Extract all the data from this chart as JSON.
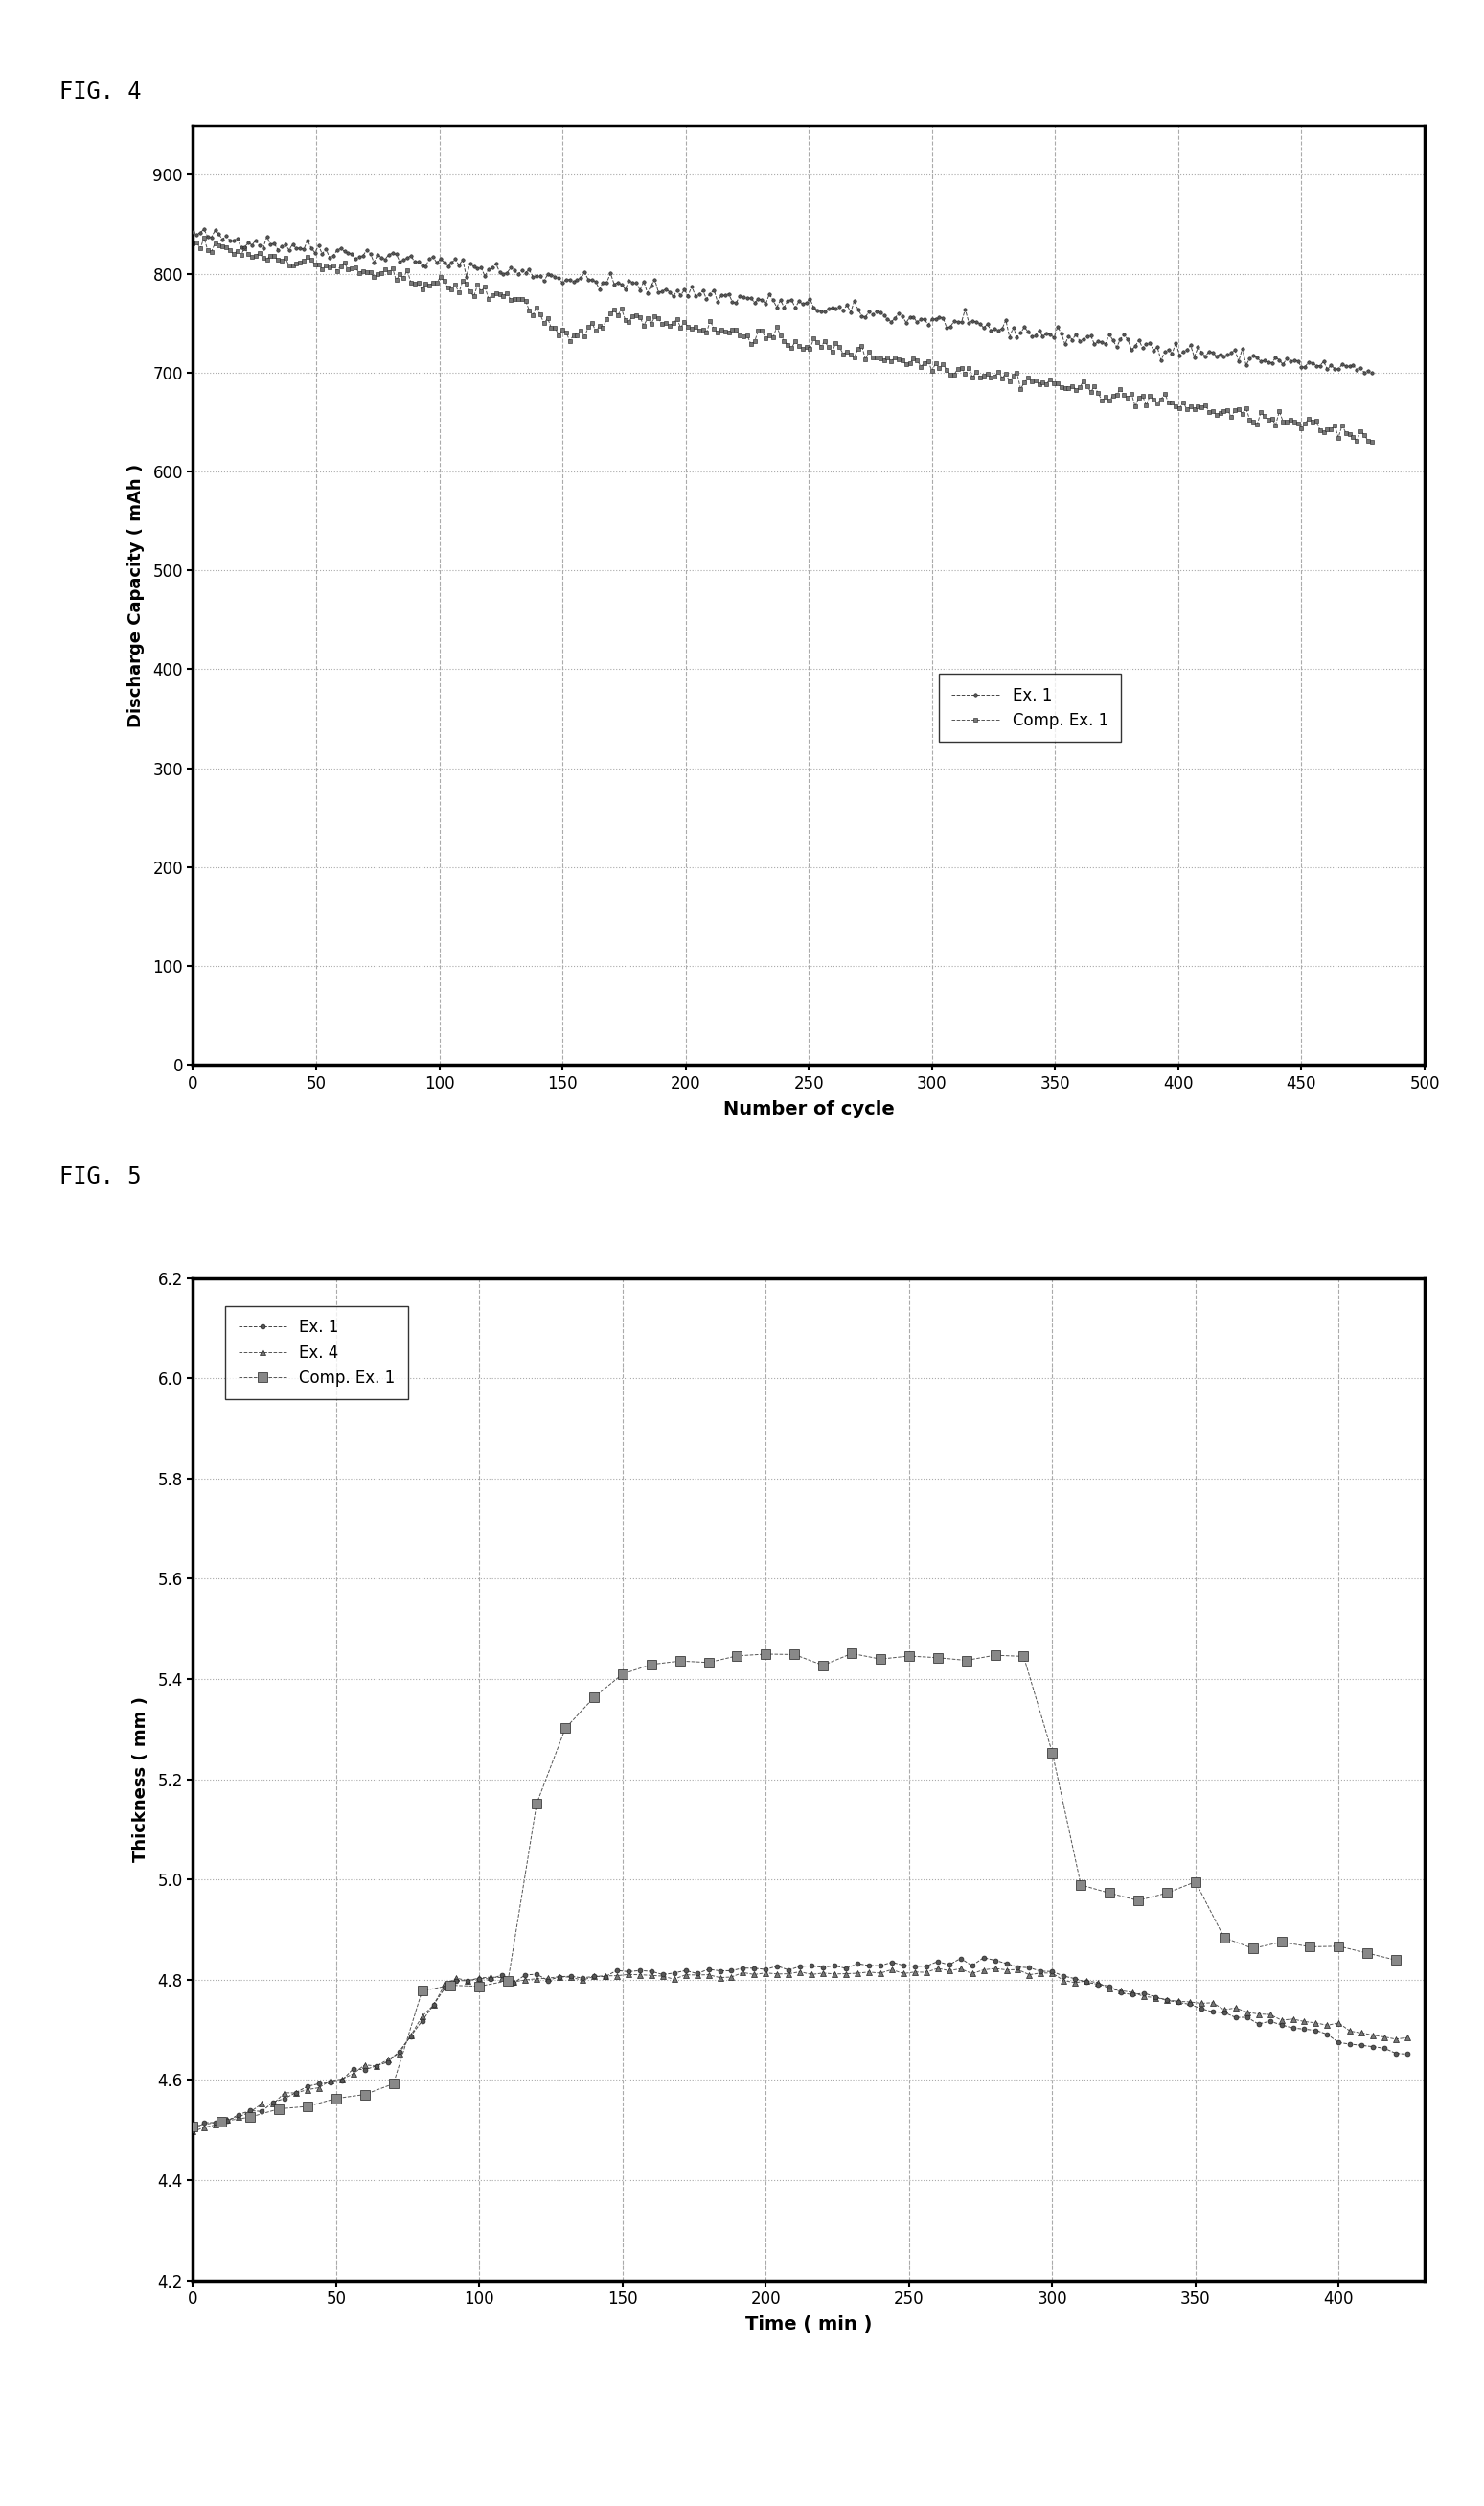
{
  "fig4_title": "FIG. 4",
  "fig5_title": "FIG. 5",
  "fig4_xlabel": "Number of cycle",
  "fig4_ylabel": "Discharge Capacity ( mAh )",
  "fig4_xlim": [
    0,
    500
  ],
  "fig4_ylim": [
    0,
    950
  ],
  "fig4_xticks": [
    0,
    50,
    100,
    150,
    200,
    250,
    300,
    350,
    400,
    450,
    500
  ],
  "fig4_yticks": [
    0,
    100,
    200,
    300,
    400,
    500,
    600,
    700,
    800,
    900
  ],
  "fig5_xlabel": "Time ( min )",
  "fig5_ylabel": "Thickness ( mm )",
  "fig5_xlim": [
    0,
    430
  ],
  "fig5_ylim": [
    4.2,
    6.2
  ],
  "fig5_xticks": [
    0,
    50,
    100,
    150,
    200,
    250,
    300,
    350,
    400
  ],
  "fig5_yticks": [
    4.2,
    4.4,
    4.6,
    4.8,
    5.0,
    5.2,
    5.4,
    5.6,
    5.8,
    6.0,
    6.2
  ],
  "legend_ex1": "Ex. 1",
  "legend_comp_ex1": "Comp. Ex. 1",
  "legend_ex4": "Ex. 4"
}
